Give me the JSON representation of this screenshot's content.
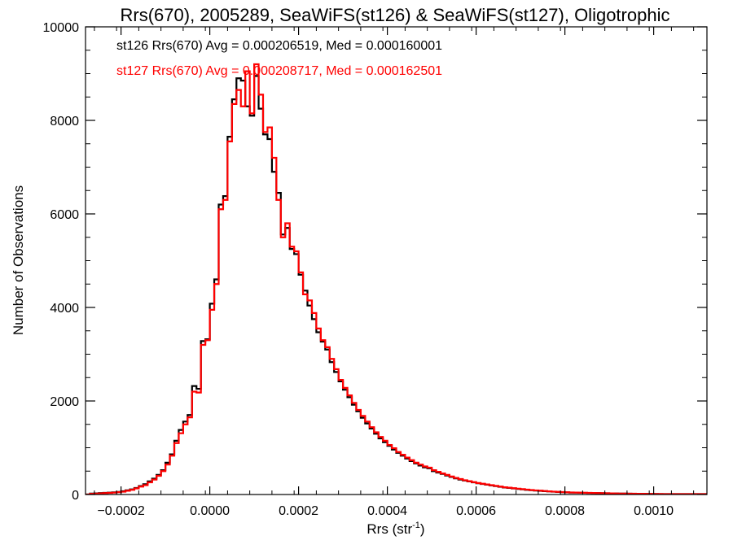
{
  "chart_data": {
    "type": "line",
    "title": "Rrs(670), 2005289, SeaWiFS(st126) & SeaWiFS(st127), Oligotrophic",
    "xlabel_main": "Rrs (str",
    "xlabel_sup": "-1",
    "xlabel_close": ")",
    "ylabel": "Number of Observations",
    "xlim": [
      -0.00028,
      0.00112
    ],
    "ylim": [
      0,
      10000
    ],
    "x_ticks": [
      -0.0002,
      0.0,
      0.0002,
      0.0004,
      0.0006,
      0.0008,
      0.001
    ],
    "x_tick_labels": [
      "−0.0002",
      "0.0000",
      "0.0002",
      "0.0004",
      "0.0006",
      "0.0008",
      "0.0010"
    ],
    "y_ticks": [
      0,
      2000,
      4000,
      6000,
      8000,
      10000
    ],
    "y_tick_labels": [
      "0",
      "2000",
      "4000",
      "6000",
      "8000",
      "10000"
    ],
    "bin_width": 1e-05,
    "x_start": -0.00028,
    "annotations": [
      {
        "text": "st126 Rrs(670) Avg = 0.000206519, Med = 0.000160001",
        "color": "#000000"
      },
      {
        "text": "st127 Rrs(670) Avg = 0.000208717, Med = 0.000162501",
        "color": "#ff0000"
      }
    ],
    "series": [
      {
        "name": "st126",
        "color": "#000000",
        "values": [
          0,
          20,
          25,
          30,
          35,
          40,
          45,
          55,
          70,
          90,
          110,
          140,
          180,
          220,
          280,
          340,
          420,
          520,
          680,
          860,
          1150,
          1380,
          1560,
          1700,
          2320,
          2260,
          3280,
          3320,
          4080,
          4600,
          6200,
          6380,
          7650,
          8450,
          8900,
          8850,
          8300,
          8100,
          8950,
          8250,
          7700,
          7600,
          6900,
          6450,
          5560,
          5700,
          5250,
          5140,
          4700,
          4360,
          4040,
          3750,
          3470,
          3270,
          3100,
          2830,
          2620,
          2420,
          2240,
          2080,
          1920,
          1780,
          1640,
          1520,
          1410,
          1300,
          1200,
          1120,
          1040,
          960,
          890,
          830,
          770,
          715,
          665,
          620,
          580,
          560,
          500,
          470,
          440,
          405,
          375,
          345,
          320,
          300,
          280,
          260,
          240,
          225,
          210,
          195,
          180,
          165,
          150,
          140,
          130,
          120,
          110,
          100,
          92,
          85,
          78,
          72,
          66,
          60,
          55,
          50,
          46,
          42,
          40,
          38,
          36,
          34,
          32,
          30,
          28,
          26,
          24,
          22,
          20,
          20,
          18,
          16,
          15,
          14,
          13,
          12,
          11,
          10,
          10,
          10,
          10,
          10,
          10,
          10,
          10,
          10,
          10,
          10,
          10
        ]
      },
      {
        "name": "st127",
        "color": "#ff0000",
        "values": [
          0,
          15,
          20,
          25,
          30,
          35,
          40,
          50,
          60,
          80,
          100,
          130,
          170,
          200,
          260,
          320,
          400,
          500,
          640,
          830,
          1100,
          1310,
          1500,
          1650,
          2200,
          2180,
          3200,
          3300,
          3950,
          4500,
          6100,
          6300,
          7550,
          8350,
          8650,
          8300,
          9050,
          8150,
          9200,
          8550,
          7750,
          7850,
          7200,
          6300,
          5500,
          5800,
          5300,
          5200,
          4750,
          4280,
          4150,
          3880,
          3550,
          3300,
          3150,
          2900,
          2680,
          2450,
          2280,
          2120,
          1960,
          1810,
          1680,
          1560,
          1440,
          1330,
          1230,
          1150,
          1060,
          990,
          910,
          850,
          790,
          735,
          680,
          640,
          600,
          575,
          520,
          485,
          450,
          420,
          385,
          355,
          330,
          305,
          285,
          265,
          245,
          230,
          215,
          200,
          185,
          170,
          155,
          145,
          135,
          125,
          115,
          105,
          96,
          88,
          82,
          75,
          68,
          62,
          57,
          52,
          48,
          44,
          41,
          39,
          37,
          35,
          33,
          31,
          29,
          27,
          25,
          23,
          21,
          20,
          18,
          17,
          16,
          15,
          14,
          13,
          12,
          11,
          10,
          10,
          10,
          10,
          10,
          10,
          10,
          10,
          10,
          10,
          10
        ]
      }
    ]
  }
}
